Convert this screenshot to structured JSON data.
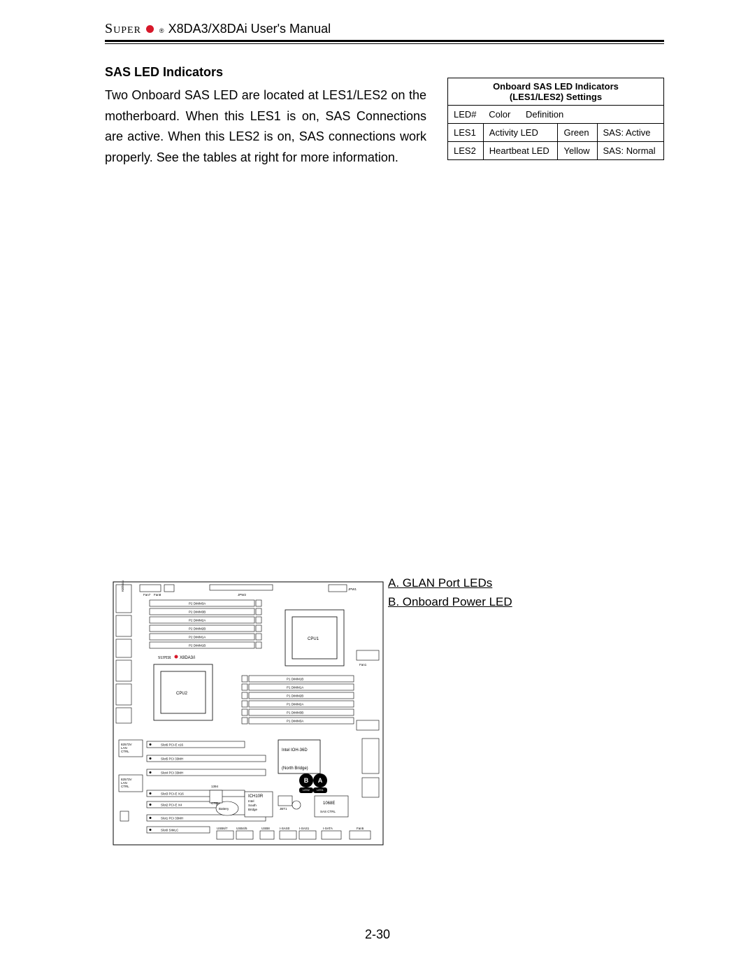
{
  "header": {
    "brand": "Super",
    "model_title": "X8DA3/X8DAi User's Manual"
  },
  "section": {
    "title": "SAS LED Indicators",
    "body": "Two Onboard SAS LED are located at LES1/LES2 on the motherboard. When this LES1 is on, SAS Connections are active. When this LES2 is on, SAS connections work properly. See the tables at right for more information."
  },
  "led_table": {
    "caption_line1": "Onboard SAS LED Indicators",
    "caption_line2": "(LES1/LES2) Settings",
    "header_cols": [
      "LED#",
      "Color",
      "Definition"
    ],
    "rows": [
      {
        "led": "LES1",
        "name": "Activity LED",
        "color": "Green",
        "def": "SAS: Active"
      },
      {
        "led": "LES2",
        "name": "Heartbeat LED",
        "color": "Yellow",
        "def": "SAS: Normal"
      }
    ]
  },
  "legend": {
    "a": "A. GLAN Port LEDs",
    "b": "B. Onboard Power LED"
  },
  "page_number": "2-30",
  "diagram": {
    "brand_label": "SUPER",
    "model_label": "X8DA3/i",
    "cpu1": "CPU1",
    "cpu2": "CPU2",
    "north_bridge_1": "Intel IOH-36D",
    "north_bridge_2": "(North Bridge)",
    "south_bridge_1": "ICH10R",
    "south_bridge_2": "Intel",
    "south_bridge_3": "South",
    "south_bridge_4": "Bridge",
    "sas_chip": "1068E",
    "sas_ctrl": "SAS CTRL",
    "battery": "Battery",
    "p2_dimms": [
      "P2 DIMM3A",
      "P2 DIMM3B",
      "P2 DIMM2A",
      "P2 DIMM2B",
      "P2 DIMM1A",
      "P2 DIMM1B"
    ],
    "p1_dimms": [
      "P1 DIMM1B",
      "P1 DIMM1A",
      "P1 DIMM2B",
      "P1 DIMM2A",
      "P1 DIMM3B",
      "P1 DIMM3A"
    ],
    "slots": [
      "Slot6 PCI-E x16",
      "Slot5 PCI 33MH",
      "Slot4 PCI 33MH",
      "Slot3 PCI-E X16",
      "Slot2 PCI-E X4",
      "Slot1 PCI 33MH",
      "Slot0 SIMLC"
    ],
    "lan_ctrl": "82573V LAN CTRL",
    "lan_ctrl2": "82573V LAN CTRL",
    "callout_a": "A",
    "callout_b": "B",
    "callout_sub_a": "LES1",
    "callout_sub_b": "LES2",
    "colors": {
      "outline": "#000000",
      "fill": "#ffffff",
      "callout": "#000000",
      "red": "#d7182a"
    }
  }
}
